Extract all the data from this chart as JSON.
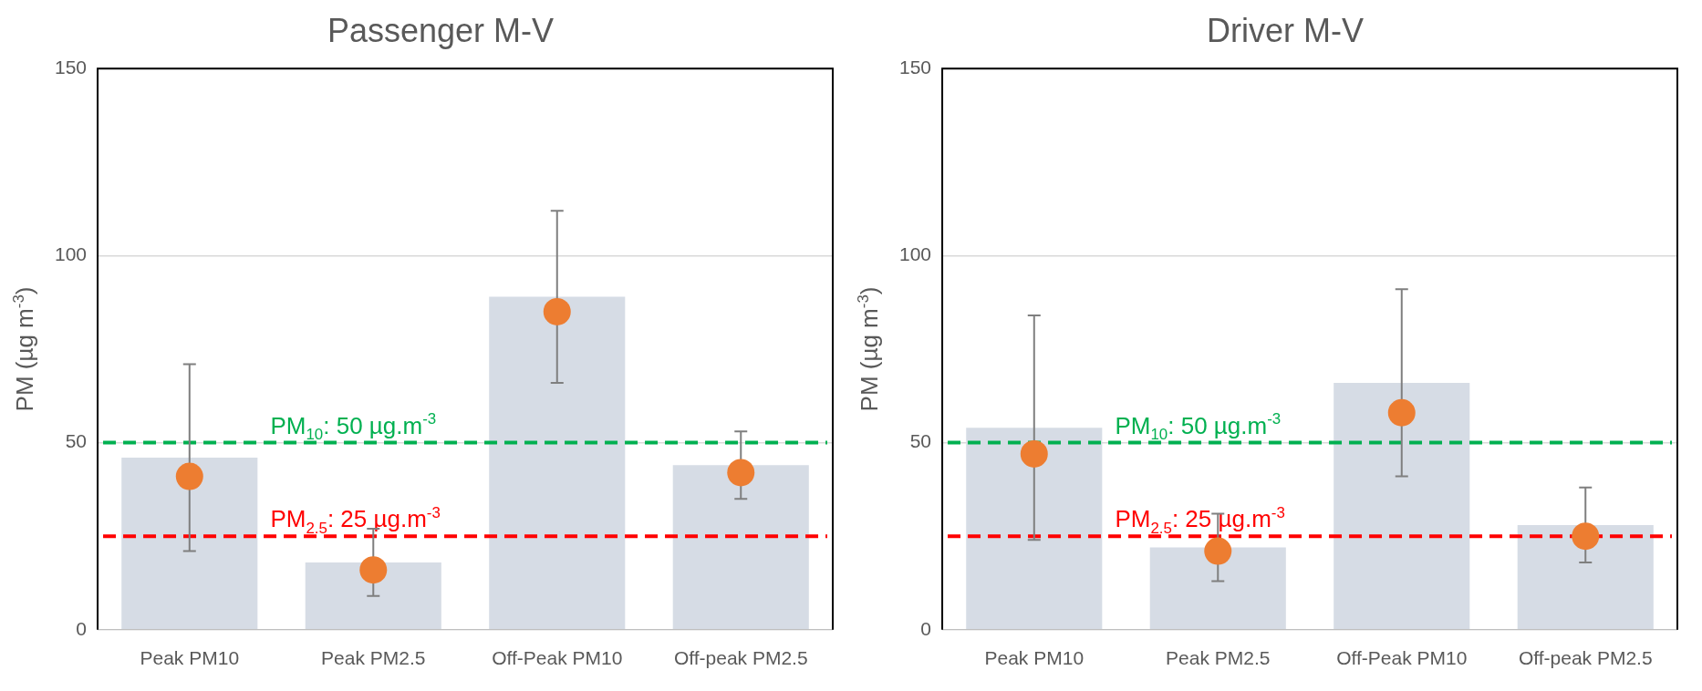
{
  "chart_data": [
    {
      "type": "bar",
      "title": "Passenger M-V",
      "ylabel": "PM (µg m$^{-3}$)",
      "categories": [
        "Peak PM10",
        "Peak PM2.5",
        "Off-Peak PM10",
        "Off-peak PM2.5"
      ],
      "ylim": [
        0,
        150
      ],
      "yticks": [
        0,
        50,
        100,
        150
      ],
      "grid": "y",
      "series": [
        {
          "color": "#d6dce5",
          "values": [
            46,
            18,
            89,
            44
          ]
        },
        {
          "type": "scatter",
          "color": "#ed7d31",
          "marker": "circle",
          "x": [
            "Peak PM10",
            "Peak PM2.5",
            "Off-Peak PM10",
            "Off-peak PM2.5"
          ],
          "values": [
            41,
            16,
            85,
            42
          ],
          "errors": [
            [
              21,
              71
            ],
            [
              9,
              27
            ],
            [
              66,
              112
            ],
            [
              35,
              53
            ]
          ]
        }
      ],
      "ref_lines": [
        {
          "axis": "y",
          "value": 50,
          "label": "PM$_{10}$: 50 µg.m$^{-3}$",
          "color": "#00b050",
          "line_style": "dashed"
        },
        {
          "axis": "y",
          "value": 25,
          "label": "PM$_{2.5}$: 25 µg.m$^{-3}$",
          "color": "#ff0000",
          "line_style": "dashed"
        }
      ]
    },
    {
      "type": "bar",
      "title": "Driver M-V",
      "ylabel": "PM (µg m$^{-3}$)",
      "categories": [
        "Peak PM10",
        "Peak PM2.5",
        "Off-Peak PM10",
        "Off-peak PM2.5"
      ],
      "ylim": [
        0,
        150
      ],
      "yticks": [
        0,
        50,
        100,
        150
      ],
      "grid": "y",
      "series": [
        {
          "color": "#d6dce5",
          "values": [
            54,
            22,
            66,
            28
          ]
        },
        {
          "type": "scatter",
          "color": "#ed7d31",
          "marker": "circle",
          "x": [
            "Peak PM10",
            "Peak PM2.5",
            "Off-Peak PM10",
            "Off-peak PM2.5"
          ],
          "values": [
            47,
            21,
            58,
            25
          ],
          "errors": [
            [
              24,
              84
            ],
            [
              13,
              31
            ],
            [
              41,
              91
            ],
            [
              18,
              38
            ]
          ]
        }
      ],
      "ref_lines": [
        {
          "axis": "y",
          "value": 50,
          "label": "PM$_{10}$: 50 µg.m$^{-3}$",
          "color": "#00b050",
          "line_style": "dashed"
        },
        {
          "axis": "y",
          "value": 25,
          "label": "PM$_{2.5}$: 25 µg.m$^{-3}$",
          "color": "#ff0000",
          "line_style": "dashed"
        }
      ]
    }
  ]
}
